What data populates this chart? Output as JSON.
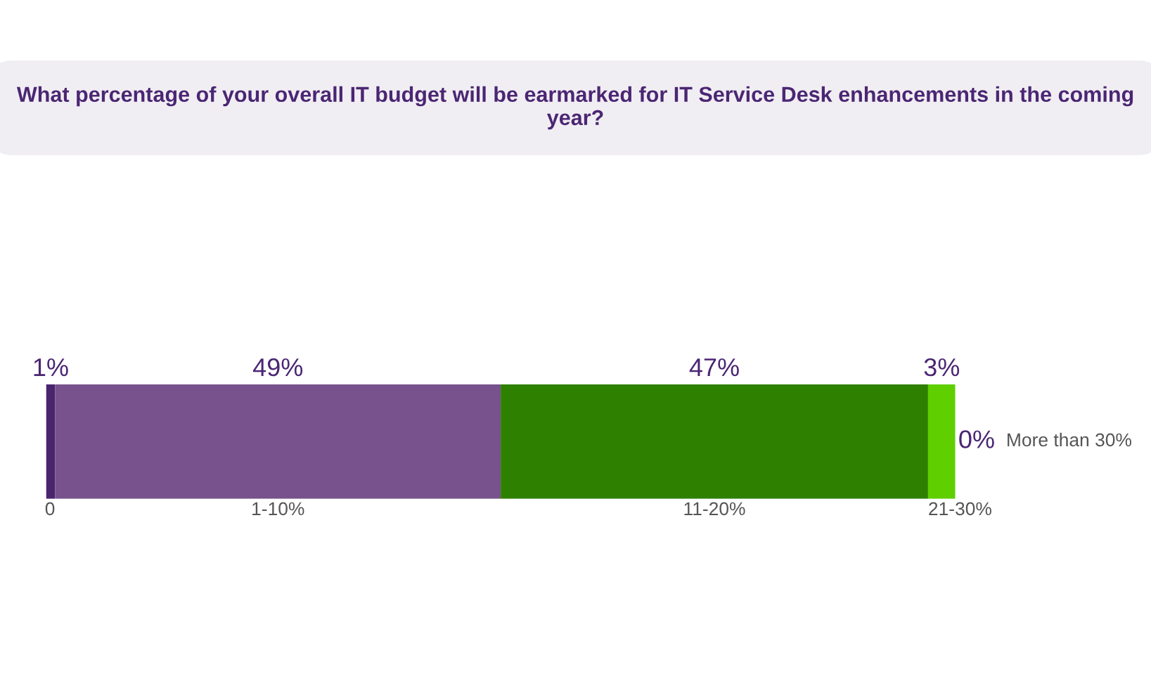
{
  "chart_data": {
    "type": "bar",
    "orientation": "horizontal",
    "stacked": true,
    "title": "What percentage of your overall IT budget will be earmarked for IT Service Desk enhancements in the coming year?",
    "categories": [
      null
    ],
    "series": [
      {
        "name": "0",
        "color": "#4a256e",
        "values": [
          1
        ],
        "value_labels": [
          "1%"
        ]
      },
      {
        "name": "1-10%",
        "color": "#77528c",
        "values": [
          49
        ],
        "value_labels": [
          "49%"
        ]
      },
      {
        "name": "11-20%",
        "color": "#2e8000",
        "values": [
          47
        ],
        "value_labels": [
          "47%"
        ]
      },
      {
        "name": "21-30%",
        "color": "#5fcf00",
        "values": [
          3
        ],
        "value_labels": [
          "3%"
        ]
      },
      {
        "name": "More than 30%",
        "values": [
          0
        ],
        "value_labels": [
          "0%"
        ]
      }
    ],
    "tick_labels": false,
    "legend": false
  }
}
